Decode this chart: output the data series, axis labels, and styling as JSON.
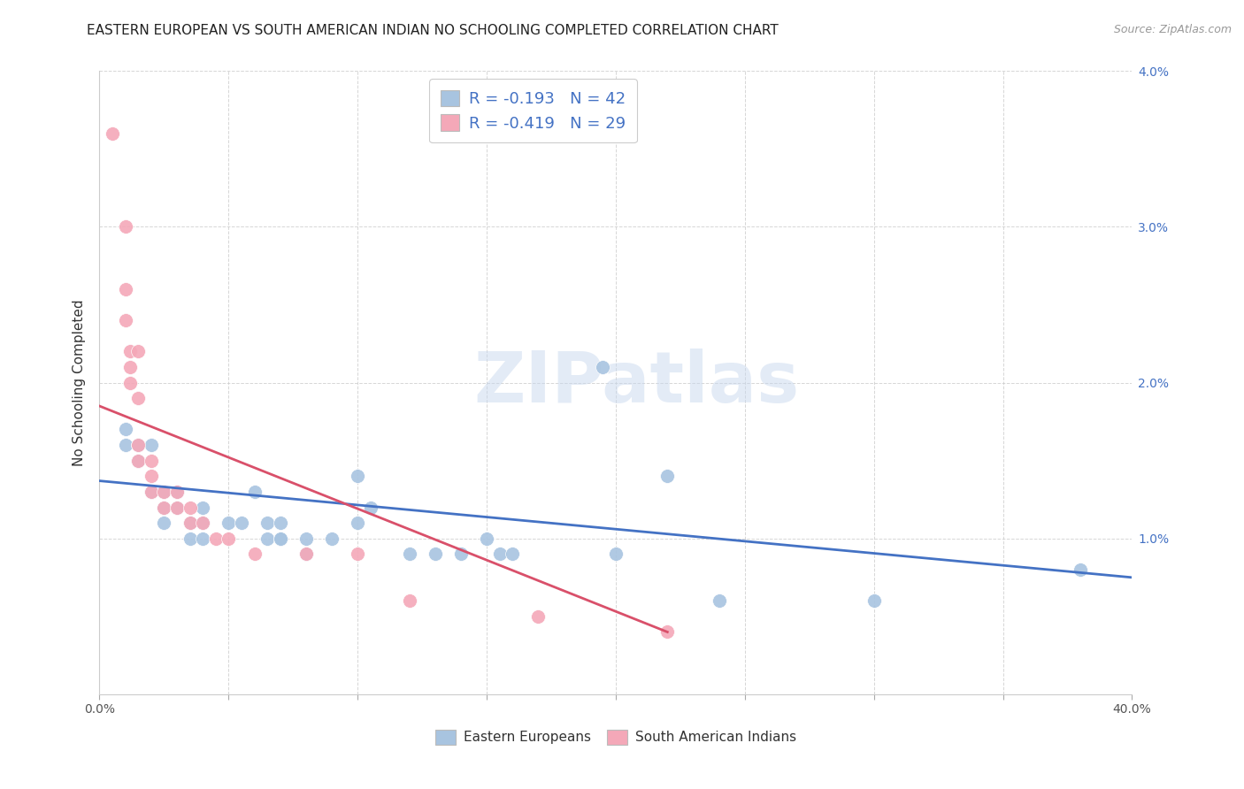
{
  "title": "EASTERN EUROPEAN VS SOUTH AMERICAN INDIAN NO SCHOOLING COMPLETED CORRELATION CHART",
  "source": "Source: ZipAtlas.com",
  "ylabel": "No Schooling Completed",
  "xlim": [
    0.0,
    0.4
  ],
  "ylim": [
    0.0,
    0.04
  ],
  "legend_R1": "R = -0.193",
  "legend_N1": "N = 42",
  "legend_R2": "R = -0.419",
  "legend_N2": "N = 29",
  "color_blue": "#a8c4e0",
  "color_pink": "#f4a8b8",
  "line_color_blue": "#4472c4",
  "line_color_pink": "#d9506a",
  "blue_points": [
    [
      0.01,
      0.017
    ],
    [
      0.01,
      0.016
    ],
    [
      0.015,
      0.016
    ],
    [
      0.015,
      0.015
    ],
    [
      0.02,
      0.016
    ],
    [
      0.02,
      0.013
    ],
    [
      0.025,
      0.013
    ],
    [
      0.025,
      0.012
    ],
    [
      0.025,
      0.011
    ],
    [
      0.03,
      0.013
    ],
    [
      0.03,
      0.012
    ],
    [
      0.035,
      0.011
    ],
    [
      0.035,
      0.01
    ],
    [
      0.04,
      0.012
    ],
    [
      0.04,
      0.011
    ],
    [
      0.04,
      0.01
    ],
    [
      0.05,
      0.011
    ],
    [
      0.055,
      0.011
    ],
    [
      0.06,
      0.013
    ],
    [
      0.065,
      0.011
    ],
    [
      0.065,
      0.01
    ],
    [
      0.07,
      0.011
    ],
    [
      0.07,
      0.01
    ],
    [
      0.07,
      0.01
    ],
    [
      0.08,
      0.01
    ],
    [
      0.08,
      0.009
    ],
    [
      0.09,
      0.01
    ],
    [
      0.1,
      0.014
    ],
    [
      0.1,
      0.011
    ],
    [
      0.105,
      0.012
    ],
    [
      0.12,
      0.009
    ],
    [
      0.13,
      0.009
    ],
    [
      0.14,
      0.009
    ],
    [
      0.15,
      0.01
    ],
    [
      0.155,
      0.009
    ],
    [
      0.16,
      0.009
    ],
    [
      0.195,
      0.021
    ],
    [
      0.2,
      0.009
    ],
    [
      0.22,
      0.014
    ],
    [
      0.24,
      0.006
    ],
    [
      0.3,
      0.006
    ],
    [
      0.38,
      0.008
    ]
  ],
  "pink_points": [
    [
      0.005,
      0.036
    ],
    [
      0.01,
      0.03
    ],
    [
      0.01,
      0.026
    ],
    [
      0.01,
      0.024
    ],
    [
      0.012,
      0.022
    ],
    [
      0.012,
      0.021
    ],
    [
      0.012,
      0.02
    ],
    [
      0.015,
      0.022
    ],
    [
      0.015,
      0.019
    ],
    [
      0.015,
      0.016
    ],
    [
      0.015,
      0.015
    ],
    [
      0.02,
      0.015
    ],
    [
      0.02,
      0.014
    ],
    [
      0.02,
      0.013
    ],
    [
      0.025,
      0.013
    ],
    [
      0.025,
      0.012
    ],
    [
      0.03,
      0.013
    ],
    [
      0.03,
      0.012
    ],
    [
      0.035,
      0.012
    ],
    [
      0.035,
      0.011
    ],
    [
      0.04,
      0.011
    ],
    [
      0.045,
      0.01
    ],
    [
      0.05,
      0.01
    ],
    [
      0.06,
      0.009
    ],
    [
      0.08,
      0.009
    ],
    [
      0.1,
      0.009
    ],
    [
      0.12,
      0.006
    ],
    [
      0.17,
      0.005
    ],
    [
      0.22,
      0.004
    ]
  ],
  "blue_line_x": [
    0.0,
    0.4
  ],
  "blue_line_y": [
    0.0137,
    0.0075
  ],
  "pink_line_x": [
    0.0,
    0.22
  ],
  "pink_line_y": [
    0.0185,
    0.004
  ],
  "background_color": "#ffffff",
  "grid_color": "#cccccc",
  "title_fontsize": 11,
  "axis_label_fontsize": 11,
  "tick_fontsize": 10,
  "legend_fontsize": 13
}
